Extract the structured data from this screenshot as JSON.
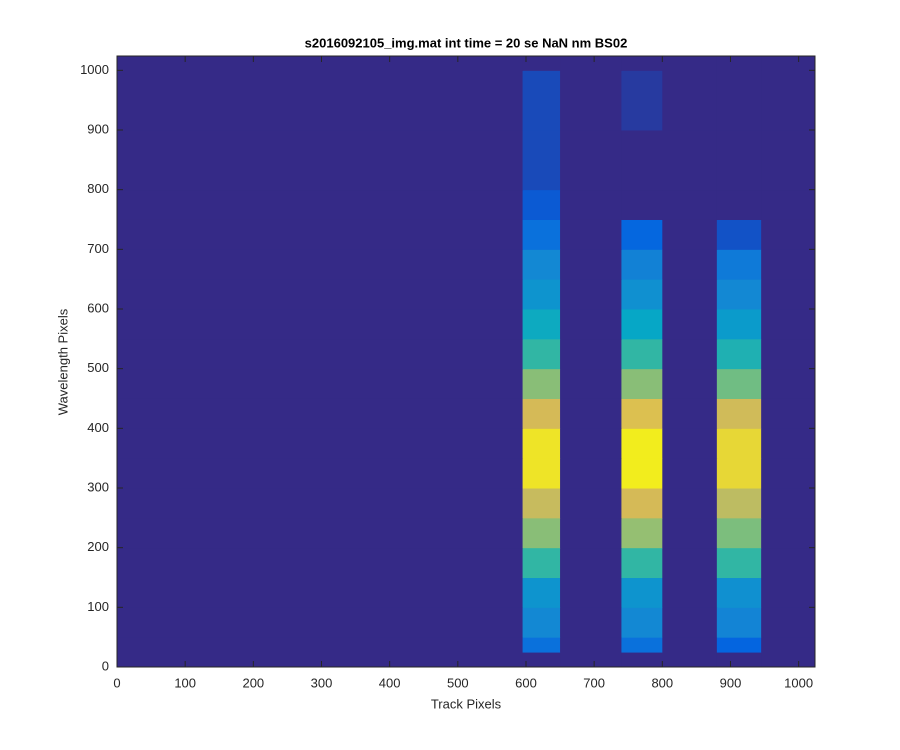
{
  "chart_data": {
    "type": "heatmap",
    "title": "s2016092105_img.mat int time = 20 se  NaN nm BS02",
    "xlabel": "Track Pixels",
    "ylabel": "Wavelength Pixels",
    "xlim": [
      0,
      1024
    ],
    "ylim": [
      0,
      1024
    ],
    "xticks": [
      0,
      100,
      200,
      300,
      400,
      500,
      600,
      700,
      800,
      900,
      1000
    ],
    "yticks": [
      0,
      100,
      200,
      300,
      400,
      500,
      600,
      700,
      800,
      900,
      1000
    ],
    "x_edges": [
      0,
      595,
      650,
      740,
      800,
      880,
      945,
      1024
    ],
    "y_edges": [
      0,
      25,
      50,
      100,
      150,
      200,
      250,
      300,
      350,
      400,
      450,
      500,
      550,
      600,
      650,
      700,
      750,
      800,
      900,
      1000,
      1024
    ],
    "values": [
      [
        0,
        0,
        0,
        0,
        0,
        0,
        0
      ],
      [
        0,
        0.2,
        0,
        0.2,
        0,
        0.15,
        0
      ],
      [
        0,
        0.3,
        0,
        0.3,
        0,
        0.28,
        0
      ],
      [
        0,
        0.35,
        0,
        0.35,
        0,
        0.33,
        0
      ],
      [
        0,
        0.55,
        0,
        0.55,
        0,
        0.55,
        0
      ],
      [
        0,
        0.7,
        0,
        0.72,
        0,
        0.68,
        0
      ],
      [
        0,
        0.82,
        0,
        0.85,
        0,
        0.8,
        0
      ],
      [
        0,
        0.95,
        0,
        0.97,
        0,
        0.92,
        0
      ],
      [
        0,
        0.95,
        0,
        0.97,
        0,
        0.92,
        0
      ],
      [
        0,
        0.85,
        0,
        0.87,
        0,
        0.84,
        0
      ],
      [
        0,
        0.7,
        0,
        0.7,
        0,
        0.66,
        0
      ],
      [
        0,
        0.55,
        0,
        0.55,
        0,
        0.5,
        0
      ],
      [
        0,
        0.45,
        0,
        0.43,
        0,
        0.38,
        0
      ],
      [
        0,
        0.35,
        0,
        0.33,
        0,
        0.3,
        0
      ],
      [
        0,
        0.3,
        0,
        0.27,
        0,
        0.24,
        0
      ],
      [
        0,
        0.2,
        0,
        0.16,
        0,
        0.1,
        0
      ],
      [
        0,
        0.12,
        0,
        0,
        0,
        0,
        0
      ],
      [
        0,
        0.08,
        0,
        0,
        0,
        0,
        0
      ],
      [
        0,
        0.08,
        0,
        0.04,
        0,
        0,
        0
      ],
      [
        0,
        0,
        0,
        0,
        0,
        0,
        0
      ]
    ],
    "colormap": [
      "#352a87",
      "#0363e1",
      "#1485d4",
      "#06a7c6",
      "#38b99e",
      "#92bf73",
      "#d9ba56",
      "#f9fb0e"
    ]
  }
}
